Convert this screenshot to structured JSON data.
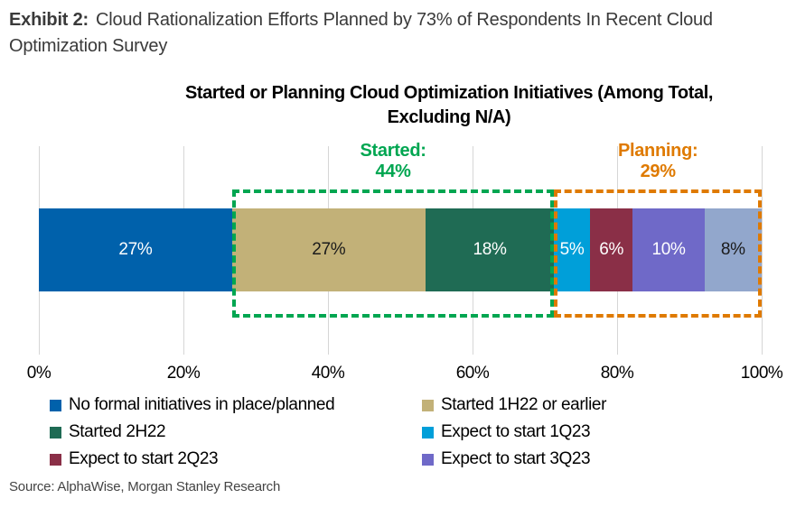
{
  "header": {
    "exhibit_label": "Exhibit 2:",
    "title": "Cloud Rationalization Efforts Planned by 73% of Respondents In Recent Cloud Optimization Survey"
  },
  "chart": {
    "title_line1": "Started or Planning Cloud Optimization Initiatives (Among Total,",
    "title_line2": "Excluding N/A)"
  },
  "chart_data": {
    "type": "bar",
    "orientation": "horizontal",
    "stacked": true,
    "title": "Started or Planning Cloud Optimization Initiatives (Among Total, Excluding N/A)",
    "unit": "%",
    "segments": [
      {
        "label": "No formal initiatives in place/planned",
        "value": 27,
        "display": "27%",
        "color": "#0061AB",
        "label_color": "#FFFFFF"
      },
      {
        "label": "Started 1H22 or earlier",
        "value": 27,
        "display": "27%",
        "color": "#C2B178",
        "label_color": "#1A1A1A"
      },
      {
        "label": "Started 2H22",
        "value": 18,
        "display": "18%",
        "color": "#1F6B54",
        "label_color": "#FFFFFF"
      },
      {
        "label": "Expect to start 1Q23",
        "value": 5,
        "display": "5%",
        "color": "#009FD9",
        "label_color": "#FFFFFF"
      },
      {
        "label": "Expect to start 2Q23",
        "value": 6,
        "display": "6%",
        "color": "#8A2F47",
        "label_color": "#FFFFFF"
      },
      {
        "label": "Expect to start 3Q23",
        "value": 10,
        "display": "10%",
        "color": "#6F69C8",
        "label_color": "#FFFFFF"
      },
      {
        "label": "",
        "value": 8,
        "display": "8%",
        "color": "#92A7CC",
        "label_color": "#1A1A1A"
      }
    ],
    "groups": [
      {
        "name": "started",
        "display": "Started:",
        "value_display": "44%",
        "color": "#00A651",
        "from": 27,
        "to": 72
      },
      {
        "name": "planning",
        "display": "Planning:",
        "value_display": "29%",
        "color": "#DF7A00",
        "from": 72,
        "to": 101
      }
    ],
    "x_axis": {
      "min": 0,
      "max": 100,
      "tick_labels": [
        "0%",
        "20%",
        "40%",
        "60%",
        "80%",
        "100%"
      ],
      "gridlines": true
    },
    "legend": {
      "columns": 2,
      "entries": [
        {
          "label": "No formal initiatives in place/planned",
          "color": "#0061AB"
        },
        {
          "label": "Started 1H22 or earlier",
          "color": "#C2B178"
        },
        {
          "label": "Started 2H22",
          "color": "#1F6B54"
        },
        {
          "label": "Expect to start 1Q23",
          "color": "#009FD9"
        },
        {
          "label": "Expect to start 2Q23",
          "color": "#8A2F47"
        },
        {
          "label": "Expect to start 3Q23",
          "color": "#6F69C8"
        }
      ]
    }
  },
  "source": "Source: AlphaWise, Morgan Stanley Research"
}
